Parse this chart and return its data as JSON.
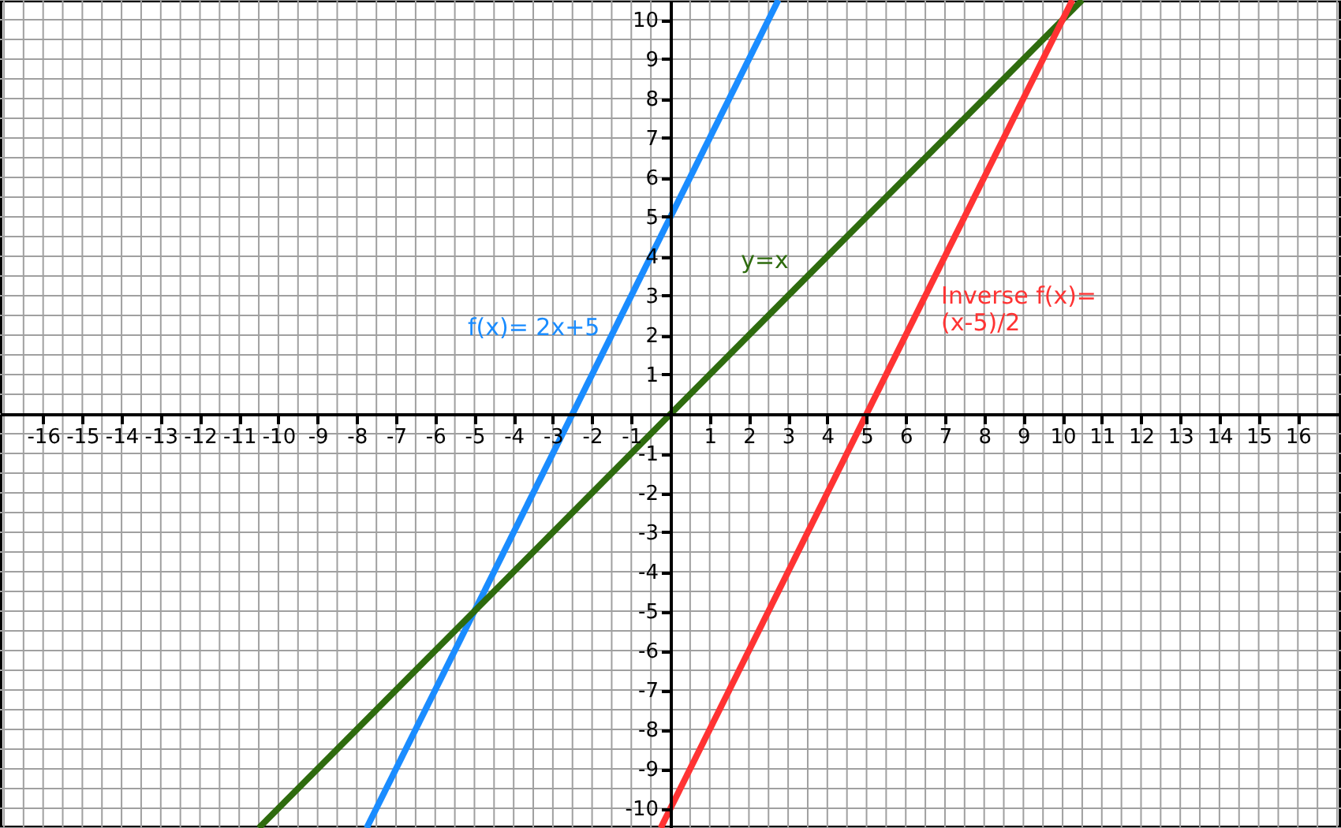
{
  "chart_data": {
    "type": "line",
    "xlim": [
      -17.1,
      17.1
    ],
    "ylim": [
      -10.5,
      10.5
    ],
    "xticks": [
      -16,
      -15,
      -14,
      -13,
      -12,
      -11,
      -10,
      -9,
      -8,
      -7,
      -6,
      -5,
      -4,
      -3,
      -2,
      -1,
      1,
      2,
      3,
      4,
      5,
      6,
      7,
      8,
      9,
      10,
      11,
      12,
      13,
      14,
      15,
      16
    ],
    "yticks": [
      -10,
      -9,
      -8,
      -7,
      -6,
      -5,
      -4,
      -3,
      -2,
      -1,
      1,
      2,
      3,
      4,
      5,
      6,
      7,
      8,
      9,
      10
    ],
    "grid": true,
    "marker": "none",
    "line_style": "solid",
    "series": [
      {
        "name": "f(x)= 2x+5",
        "color": "#1a8cff",
        "x": [
          -7.75,
          2.75
        ],
        "values": [
          -10.5,
          10.5
        ]
      },
      {
        "name": "y=x",
        "color": "#2e6b0e",
        "x": [
          -10.5,
          10.5
        ],
        "values": [
          -10.5,
          10.5
        ]
      },
      {
        "name": "Inverse f(x)=\n(x-5)/2",
        "color": "#ff3333",
        "x": [
          -0.25,
          10.25
        ],
        "values": [
          -10.5,
          10.5
        ]
      }
    ]
  }
}
